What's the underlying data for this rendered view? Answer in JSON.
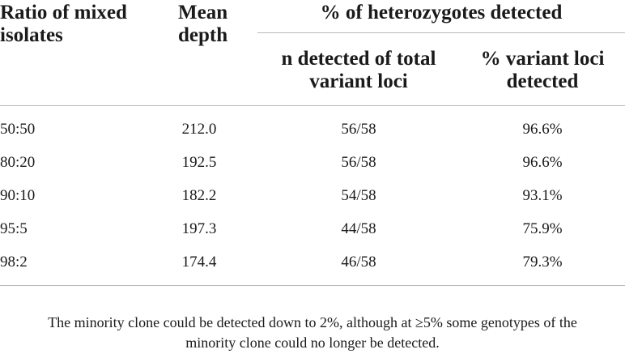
{
  "header": {
    "ratio": "Ratio of mixed isolates",
    "ratio_line1": "Ratio of mixed",
    "ratio_line2": "isolates",
    "depth_line1": "Mean",
    "depth_line2": "depth",
    "group": "% of heterozygotes detected",
    "sub_detected_line1": "n detected of total",
    "sub_detected_line2": "variant loci",
    "sub_pct_line1": "% variant loci",
    "sub_pct_line2": "detected"
  },
  "rows": [
    {
      "ratio": "50:50",
      "depth": "212.0",
      "detected": "56/58",
      "pct": "96.6%"
    },
    {
      "ratio": "80:20",
      "depth": "192.5",
      "detected": "56/58",
      "pct": "96.6%"
    },
    {
      "ratio": "90:10",
      "depth": "182.2",
      "detected": "54/58",
      "pct": "93.1%"
    },
    {
      "ratio": "95:5",
      "depth": "197.3",
      "detected": "44/58",
      "pct": "75.9%"
    },
    {
      "ratio": "98:2",
      "depth": "174.4",
      "detected": "46/58",
      "pct": "79.3%"
    }
  ],
  "footnote": {
    "line1": "The minority clone could be detected down to 2%, although at ≥5% some genotypes of the",
    "line2": "minority clone could no longer be detected."
  }
}
